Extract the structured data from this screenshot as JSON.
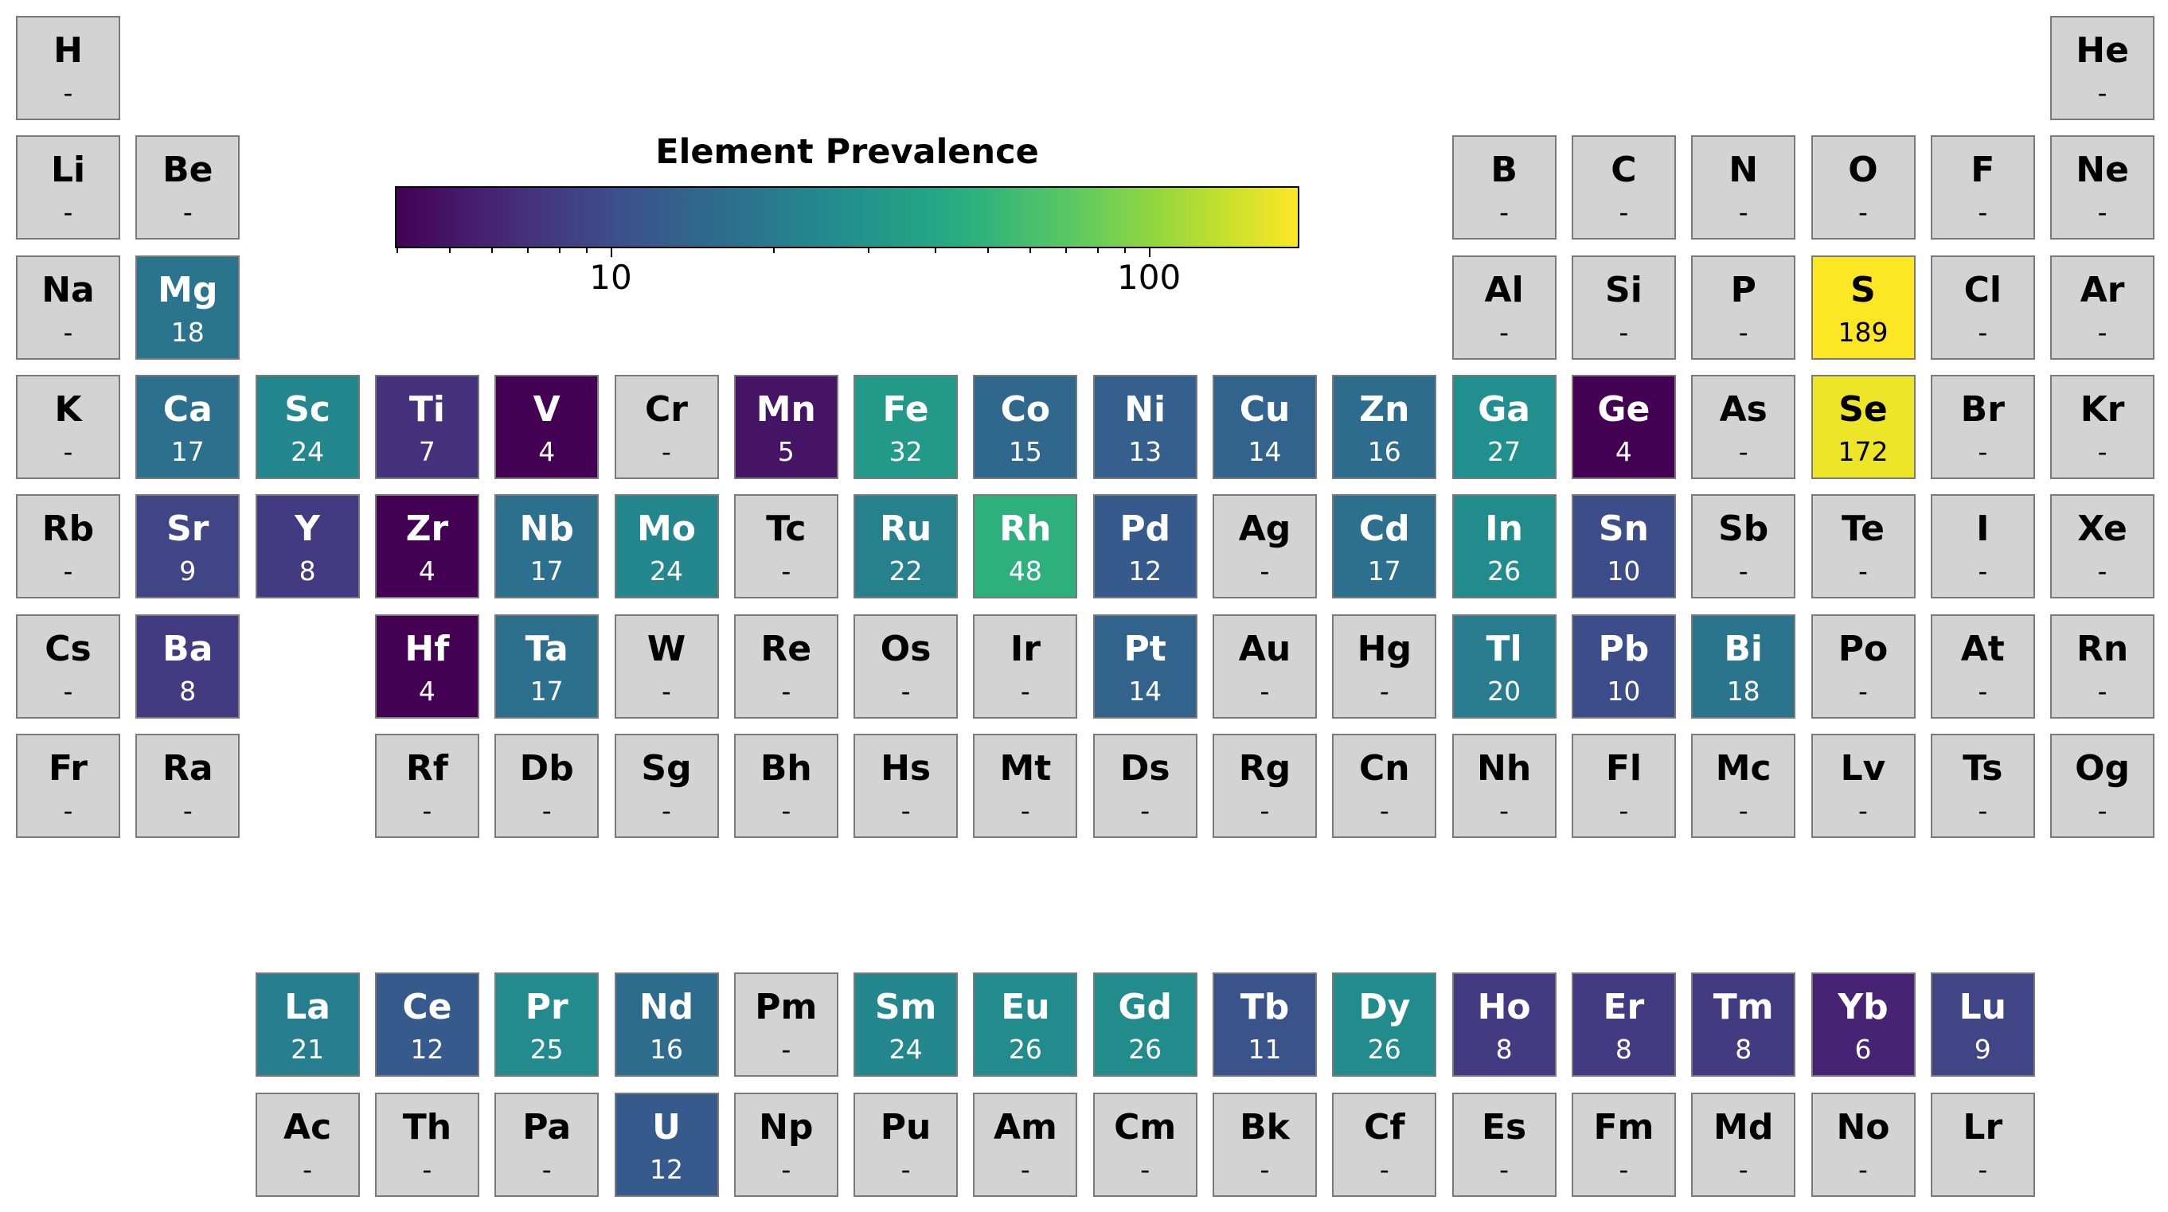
{
  "chart_data": {
    "type": "heatmap",
    "title": "",
    "colorbar": {
      "label": "Element Prevalence",
      "scale": "log",
      "range": [
        4,
        189
      ],
      "tick_labels": [
        "10",
        "100"
      ],
      "colormap": "viridis"
    },
    "missing_label": "-",
    "missing_color": "#d3d3d3",
    "elements": [
      {
        "symbol": "H",
        "value": null
      },
      {
        "symbol": "He",
        "value": null
      },
      {
        "symbol": "Li",
        "value": null
      },
      {
        "symbol": "Be",
        "value": null
      },
      {
        "symbol": "B",
        "value": null
      },
      {
        "symbol": "C",
        "value": null
      },
      {
        "symbol": "N",
        "value": null
      },
      {
        "symbol": "O",
        "value": null
      },
      {
        "symbol": "F",
        "value": null
      },
      {
        "symbol": "Ne",
        "value": null
      },
      {
        "symbol": "Na",
        "value": null
      },
      {
        "symbol": "Mg",
        "value": 18
      },
      {
        "symbol": "Al",
        "value": null
      },
      {
        "symbol": "Si",
        "value": null
      },
      {
        "symbol": "P",
        "value": null
      },
      {
        "symbol": "S",
        "value": 189
      },
      {
        "symbol": "Cl",
        "value": null
      },
      {
        "symbol": "Ar",
        "value": null
      },
      {
        "symbol": "K",
        "value": null
      },
      {
        "symbol": "Ca",
        "value": 17
      },
      {
        "symbol": "Sc",
        "value": 24
      },
      {
        "symbol": "Ti",
        "value": 7
      },
      {
        "symbol": "V",
        "value": 4
      },
      {
        "symbol": "Cr",
        "value": null
      },
      {
        "symbol": "Mn",
        "value": 5
      },
      {
        "symbol": "Fe",
        "value": 32
      },
      {
        "symbol": "Co",
        "value": 15
      },
      {
        "symbol": "Ni",
        "value": 13
      },
      {
        "symbol": "Cu",
        "value": 14
      },
      {
        "symbol": "Zn",
        "value": 16
      },
      {
        "symbol": "Ga",
        "value": 27
      },
      {
        "symbol": "Ge",
        "value": 4
      },
      {
        "symbol": "As",
        "value": null
      },
      {
        "symbol": "Se",
        "value": 172
      },
      {
        "symbol": "Br",
        "value": null
      },
      {
        "symbol": "Kr",
        "value": null
      },
      {
        "symbol": "Rb",
        "value": null
      },
      {
        "symbol": "Sr",
        "value": 9
      },
      {
        "symbol": "Y",
        "value": 8
      },
      {
        "symbol": "Zr",
        "value": 4
      },
      {
        "symbol": "Nb",
        "value": 17
      },
      {
        "symbol": "Mo",
        "value": 24
      },
      {
        "symbol": "Tc",
        "value": null
      },
      {
        "symbol": "Ru",
        "value": 22
      },
      {
        "symbol": "Rh",
        "value": 48
      },
      {
        "symbol": "Pd",
        "value": 12
      },
      {
        "symbol": "Ag",
        "value": null
      },
      {
        "symbol": "Cd",
        "value": 17
      },
      {
        "symbol": "In",
        "value": 26
      },
      {
        "symbol": "Sn",
        "value": 10
      },
      {
        "symbol": "Sb",
        "value": null
      },
      {
        "symbol": "Te",
        "value": null
      },
      {
        "symbol": "I",
        "value": null
      },
      {
        "symbol": "Xe",
        "value": null
      },
      {
        "symbol": "Cs",
        "value": null
      },
      {
        "symbol": "Ba",
        "value": 8
      },
      {
        "symbol": "Hf",
        "value": 4
      },
      {
        "symbol": "Ta",
        "value": 17
      },
      {
        "symbol": "W",
        "value": null
      },
      {
        "symbol": "Re",
        "value": null
      },
      {
        "symbol": "Os",
        "value": null
      },
      {
        "symbol": "Ir",
        "value": null
      },
      {
        "symbol": "Pt",
        "value": 14
      },
      {
        "symbol": "Au",
        "value": null
      },
      {
        "symbol": "Hg",
        "value": null
      },
      {
        "symbol": "Tl",
        "value": 20
      },
      {
        "symbol": "Pb",
        "value": 10
      },
      {
        "symbol": "Bi",
        "value": 18
      },
      {
        "symbol": "Po",
        "value": null
      },
      {
        "symbol": "At",
        "value": null
      },
      {
        "symbol": "Rn",
        "value": null
      },
      {
        "symbol": "Fr",
        "value": null
      },
      {
        "symbol": "Ra",
        "value": null
      },
      {
        "symbol": "Rf",
        "value": null
      },
      {
        "symbol": "Db",
        "value": null
      },
      {
        "symbol": "Sg",
        "value": null
      },
      {
        "symbol": "Bh",
        "value": null
      },
      {
        "symbol": "Hs",
        "value": null
      },
      {
        "symbol": "Mt",
        "value": null
      },
      {
        "symbol": "Ds",
        "value": null
      },
      {
        "symbol": "Rg",
        "value": null
      },
      {
        "symbol": "Cn",
        "value": null
      },
      {
        "symbol": "Nh",
        "value": null
      },
      {
        "symbol": "Fl",
        "value": null
      },
      {
        "symbol": "Mc",
        "value": null
      },
      {
        "symbol": "Lv",
        "value": null
      },
      {
        "symbol": "Ts",
        "value": null
      },
      {
        "symbol": "Og",
        "value": null
      },
      {
        "symbol": "La",
        "value": 21
      },
      {
        "symbol": "Ce",
        "value": 12
      },
      {
        "symbol": "Pr",
        "value": 25
      },
      {
        "symbol": "Nd",
        "value": 16
      },
      {
        "symbol": "Pm",
        "value": null
      },
      {
        "symbol": "Sm",
        "value": 24
      },
      {
        "symbol": "Eu",
        "value": 26
      },
      {
        "symbol": "Gd",
        "value": 26
      },
      {
        "symbol": "Tb",
        "value": 11
      },
      {
        "symbol": "Dy",
        "value": 26
      },
      {
        "symbol": "Ho",
        "value": 8
      },
      {
        "symbol": "Er",
        "value": 8
      },
      {
        "symbol": "Tm",
        "value": 8
      },
      {
        "symbol": "Yb",
        "value": 6
      },
      {
        "symbol": "Lu",
        "value": 9
      },
      {
        "symbol": "Ac",
        "value": null
      },
      {
        "symbol": "Th",
        "value": null
      },
      {
        "symbol": "Pa",
        "value": null
      },
      {
        "symbol": "U",
        "value": 12
      },
      {
        "symbol": "Np",
        "value": null
      },
      {
        "symbol": "Pu",
        "value": null
      },
      {
        "symbol": "Am",
        "value": null
      },
      {
        "symbol": "Cm",
        "value": null
      },
      {
        "symbol": "Bk",
        "value": null
      },
      {
        "symbol": "Cf",
        "value": null
      },
      {
        "symbol": "Es",
        "value": null
      },
      {
        "symbol": "Fm",
        "value": null
      },
      {
        "symbol": "Md",
        "value": null
      },
      {
        "symbol": "No",
        "value": null
      },
      {
        "symbol": "Lr",
        "value": null
      }
    ]
  }
}
